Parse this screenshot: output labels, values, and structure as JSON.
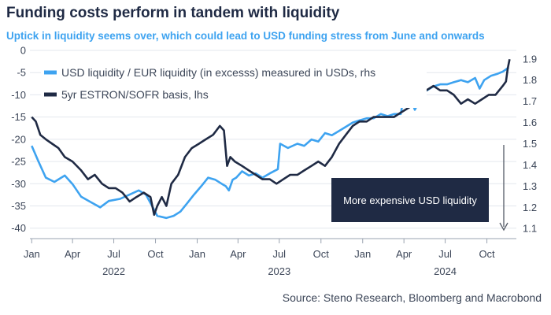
{
  "title": "Funding costs perform in tandem with liquidity",
  "subtitle": "Uptick in liquidity seems over, which could lead to USD funding stress from June and onwards",
  "source": "Source: Steno Research, Bloomberg and Macrobond",
  "chart_data": {
    "type": "line",
    "xlabel": "",
    "x_range": [
      "2021-12-28",
      "2024-12-05"
    ],
    "left_axis": {
      "ylabel": "",
      "ylim": [
        -42,
        0
      ],
      "ticks": [
        0,
        -5,
        -10,
        -15,
        -20,
        -25,
        -30,
        -35,
        -40
      ]
    },
    "right_axis": {
      "ylabel": "",
      "ylim": [
        1.06,
        1.94
      ],
      "ticks": [
        "1.9",
        "1.8",
        "1.7",
        "1.6",
        "1.5",
        "1.4",
        "1.3",
        "1.2",
        "1.1"
      ]
    },
    "x_ticks": [
      {
        "label": "Jan",
        "date": "2022-01-01"
      },
      {
        "label": "Apr",
        "date": "2022-04-01"
      },
      {
        "label": "Jul",
        "date": "2022-07-01"
      },
      {
        "label": "Oct",
        "date": "2022-10-01"
      },
      {
        "label": "Jan",
        "date": "2023-01-01"
      },
      {
        "label": "Apr",
        "date": "2023-04-01"
      },
      {
        "label": "Jul",
        "date": "2023-07-01"
      },
      {
        "label": "Oct",
        "date": "2023-10-01"
      },
      {
        "label": "Jan",
        "date": "2024-01-01"
      },
      {
        "label": "Apr",
        "date": "2024-04-01"
      },
      {
        "label": "Jul",
        "date": "2024-07-01"
      },
      {
        "label": "Oct",
        "date": "2024-10-01"
      }
    ],
    "year_labels": [
      {
        "label": "2022",
        "date": "2022-07-01"
      },
      {
        "label": "2023",
        "date": "2023-07-01"
      },
      {
        "label": "2024",
        "date": "2024-07-01"
      }
    ],
    "grid": "horizontal",
    "legend_position": "top-left",
    "series": [
      {
        "name": "USD liquidity / EUR liquidity (in excesss) measured in USDs, rhs",
        "axis": "right",
        "color": "#3ea3f0",
        "points": [
          [
            "2022-01-01",
            1.49
          ],
          [
            "2022-01-15",
            1.42
          ],
          [
            "2022-02-01",
            1.34
          ],
          [
            "2022-02-20",
            1.32
          ],
          [
            "2022-03-15",
            1.35
          ],
          [
            "2022-04-01",
            1.31
          ],
          [
            "2022-04-20",
            1.25
          ],
          [
            "2022-05-15",
            1.22
          ],
          [
            "2022-06-01",
            1.2
          ],
          [
            "2022-06-20",
            1.23
          ],
          [
            "2022-07-15",
            1.24
          ],
          [
            "2022-08-05",
            1.26
          ],
          [
            "2022-08-25",
            1.28
          ],
          [
            "2022-09-10",
            1.26
          ],
          [
            "2022-09-25",
            1.2
          ],
          [
            "2022-10-05",
            1.16
          ],
          [
            "2022-10-25",
            1.15
          ],
          [
            "2022-11-10",
            1.16
          ],
          [
            "2022-11-25",
            1.18
          ],
          [
            "2022-12-10",
            1.22
          ],
          [
            "2022-12-25",
            1.26
          ],
          [
            "2023-01-10",
            1.3
          ],
          [
            "2023-01-25",
            1.34
          ],
          [
            "2023-02-10",
            1.33
          ],
          [
            "2023-02-25",
            1.31
          ],
          [
            "2023-03-05",
            1.3
          ],
          [
            "2023-03-12",
            1.28
          ],
          [
            "2023-03-20",
            1.33
          ],
          [
            "2023-03-28",
            1.34
          ],
          [
            "2023-04-10",
            1.37
          ],
          [
            "2023-04-25",
            1.35
          ],
          [
            "2023-05-10",
            1.36
          ],
          [
            "2023-05-25",
            1.34
          ],
          [
            "2023-06-10",
            1.36
          ],
          [
            "2023-06-28",
            1.38
          ],
          [
            "2023-07-03",
            1.5
          ],
          [
            "2023-07-20",
            1.48
          ],
          [
            "2023-08-10",
            1.5
          ],
          [
            "2023-08-25",
            1.49
          ],
          [
            "2023-09-10",
            1.52
          ],
          [
            "2023-09-25",
            1.51
          ],
          [
            "2023-10-10",
            1.55
          ],
          [
            "2023-10-25",
            1.54
          ],
          [
            "2023-11-10",
            1.56
          ],
          [
            "2023-11-25",
            1.58
          ],
          [
            "2023-12-10",
            1.6
          ],
          [
            "2023-12-25",
            1.61
          ],
          [
            "2024-01-10",
            1.62
          ],
          [
            "2024-01-25",
            1.62
          ],
          [
            "2024-02-10",
            1.64
          ],
          [
            "2024-02-25",
            1.63
          ],
          [
            "2024-03-10",
            1.64
          ],
          [
            "2024-03-25",
            1.64
          ],
          [
            "2024-04-03",
            1.75
          ],
          [
            "2024-04-15",
            1.72
          ],
          [
            "2024-04-25",
            1.66
          ],
          [
            "2024-05-05",
            1.7
          ],
          [
            "2024-05-20",
            1.75
          ],
          [
            "2024-06-05",
            1.77
          ],
          [
            "2024-06-20",
            1.78
          ],
          [
            "2024-07-05",
            1.78
          ],
          [
            "2024-07-20",
            1.79
          ],
          [
            "2024-08-05",
            1.8
          ],
          [
            "2024-08-20",
            1.79
          ],
          [
            "2024-09-05",
            1.81
          ],
          [
            "2024-09-15",
            1.76
          ],
          [
            "2024-09-25",
            1.8
          ],
          [
            "2024-10-10",
            1.82
          ],
          [
            "2024-10-25",
            1.83
          ],
          [
            "2024-11-05",
            1.84
          ],
          [
            "2024-11-12",
            1.85
          ],
          [
            "2024-11-18",
            1.86
          ]
        ]
      },
      {
        "name": "5yr ESTRON/SOFR basis, lhs",
        "axis": "left",
        "color": "#1f2a44",
        "points": [
          [
            "2022-01-01",
            -15
          ],
          [
            "2022-01-10",
            -16
          ],
          [
            "2022-01-20",
            -19
          ],
          [
            "2022-02-01",
            -20
          ],
          [
            "2022-02-15",
            -21
          ],
          [
            "2022-03-01",
            -22
          ],
          [
            "2022-03-15",
            -24
          ],
          [
            "2022-04-01",
            -25
          ],
          [
            "2022-04-20",
            -27
          ],
          [
            "2022-05-05",
            -29
          ],
          [
            "2022-05-20",
            -28
          ],
          [
            "2022-06-05",
            -30
          ],
          [
            "2022-06-20",
            -31
          ],
          [
            "2022-07-05",
            -31
          ],
          [
            "2022-07-20",
            -32
          ],
          [
            "2022-08-05",
            -34
          ],
          [
            "2022-08-20",
            -33
          ],
          [
            "2022-09-05",
            -32
          ],
          [
            "2022-09-20",
            -33
          ],
          [
            "2022-09-28",
            -37
          ],
          [
            "2022-10-05",
            -35
          ],
          [
            "2022-10-15",
            -33
          ],
          [
            "2022-10-25",
            -35
          ],
          [
            "2022-11-05",
            -30
          ],
          [
            "2022-11-20",
            -28
          ],
          [
            "2022-12-05",
            -24
          ],
          [
            "2022-12-20",
            -22
          ],
          [
            "2023-01-05",
            -21
          ],
          [
            "2023-01-20",
            -20
          ],
          [
            "2023-02-05",
            -19
          ],
          [
            "2023-02-20",
            -17
          ],
          [
            "2023-03-01",
            -18
          ],
          [
            "2023-03-08",
            -26
          ],
          [
            "2023-03-15",
            -24
          ],
          [
            "2023-03-25",
            -25
          ],
          [
            "2023-04-10",
            -26
          ],
          [
            "2023-04-25",
            -27
          ],
          [
            "2023-05-10",
            -28
          ],
          [
            "2023-05-25",
            -29
          ],
          [
            "2023-06-10",
            -29
          ],
          [
            "2023-06-25",
            -30
          ],
          [
            "2023-07-10",
            -29
          ],
          [
            "2023-07-25",
            -28
          ],
          [
            "2023-08-10",
            -28
          ],
          [
            "2023-08-25",
            -27
          ],
          [
            "2023-09-10",
            -26
          ],
          [
            "2023-09-25",
            -25
          ],
          [
            "2023-10-10",
            -26
          ],
          [
            "2023-10-25",
            -24
          ],
          [
            "2023-11-10",
            -21
          ],
          [
            "2023-11-25",
            -19
          ],
          [
            "2023-12-10",
            -17
          ],
          [
            "2023-12-25",
            -16
          ],
          [
            "2024-01-10",
            -16
          ],
          [
            "2024-01-25",
            -15
          ],
          [
            "2024-02-10",
            -15
          ],
          [
            "2024-02-25",
            -15
          ],
          [
            "2024-03-10",
            -15
          ],
          [
            "2024-03-25",
            -14
          ],
          [
            "2024-04-10",
            -13
          ],
          [
            "2024-04-25",
            -12
          ],
          [
            "2024-05-05",
            -10
          ],
          [
            "2024-05-20",
            -9
          ],
          [
            "2024-06-05",
            -8
          ],
          [
            "2024-06-20",
            -9
          ],
          [
            "2024-07-05",
            -9
          ],
          [
            "2024-07-20",
            -10
          ],
          [
            "2024-08-05",
            -12
          ],
          [
            "2024-08-20",
            -11
          ],
          [
            "2024-09-05",
            -12
          ],
          [
            "2024-09-20",
            -11
          ],
          [
            "2024-10-05",
            -10
          ],
          [
            "2024-10-20",
            -10
          ],
          [
            "2024-11-05",
            -8
          ],
          [
            "2024-11-12",
            -7
          ],
          [
            "2024-11-16",
            -4
          ],
          [
            "2024-11-20",
            -2
          ]
        ]
      }
    ],
    "annotation": {
      "text": "More expensive USD liquidity",
      "arrow": "down"
    }
  }
}
